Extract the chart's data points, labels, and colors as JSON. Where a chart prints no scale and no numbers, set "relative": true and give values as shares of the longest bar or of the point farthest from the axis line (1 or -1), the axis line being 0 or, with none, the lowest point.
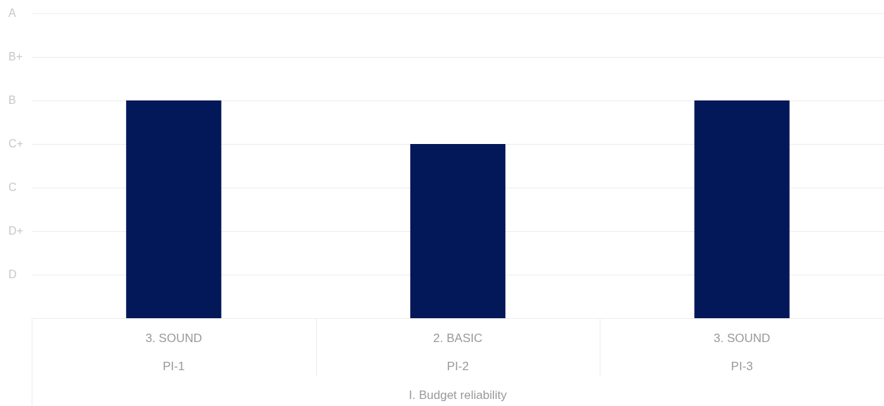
{
  "chart_data": {
    "type": "bar",
    "xlabel": "I. Budget reliability",
    "categories": [
      "PI-1",
      "PI-2",
      "PI-3"
    ],
    "values": [
      1,
      0.8,
      1
    ],
    "relative": true,
    "color": "#021859",
    "annotations": [
      "3. SOUND",
      "2. BASIC",
      "3. SOUND",
      "A",
      "B+",
      "B",
      "C+",
      "C",
      "D+",
      "D"
    ],
    "grid": "y",
    "legend": false
  }
}
